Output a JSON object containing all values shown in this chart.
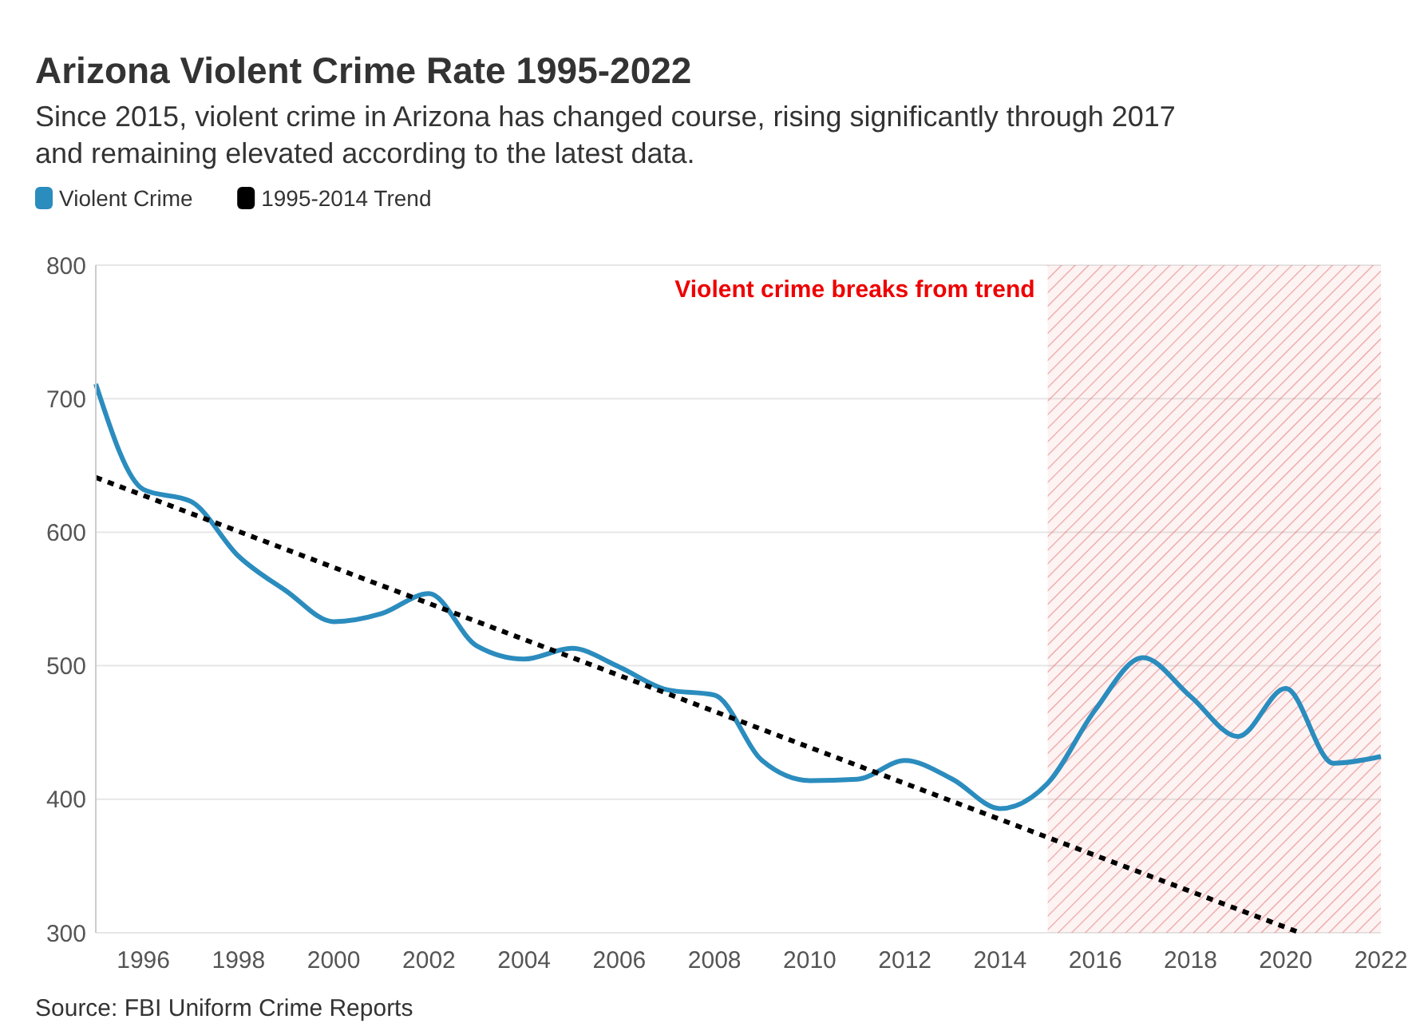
{
  "chart_data": {
    "type": "line",
    "title": "Arizona Violent Crime Rate 1995-2022",
    "subtitle": "Since 2015, violent crime in Arizona has changed course, rising significantly through 2017 and remaining elevated according to the latest data.",
    "annotations": [
      "Source: FBI Uniform Crime Reports"
    ],
    "x": [
      1995,
      1996,
      1997,
      1998,
      1999,
      2000,
      2001,
      2002,
      2003,
      2004,
      2005,
      2006,
      2007,
      2008,
      2009,
      2010,
      2011,
      2012,
      2013,
      2014,
      2015,
      2016,
      2017,
      2018,
      2019,
      2020,
      2021,
      2022
    ],
    "series": [
      {
        "name": "Violent Crime",
        "color": "#2b8cbe",
        "values": [
          711,
          632,
          623,
          582,
          556,
          533,
          539,
          554,
          515,
          505,
          513,
          499,
          482,
          478,
          429,
          414,
          415,
          429,
          415,
          393,
          412,
          467,
          506,
          477,
          447,
          483,
          427,
          432
        ]
      },
      {
        "name": "1995-2014 Trend",
        "color": "#000000",
        "type": "line",
        "line_style": "dotted",
        "x": [
          1995,
          2020.3
        ],
        "values": [
          641,
          300
        ]
      }
    ],
    "xlim": [
      1995,
      2022
    ],
    "xticks": [
      1996,
      1998,
      2000,
      2002,
      2004,
      2006,
      2008,
      2010,
      2012,
      2014,
      2016,
      2018,
      2020,
      2022
    ],
    "ylim": [
      300,
      800
    ],
    "yticks": [
      300,
      400,
      500,
      600,
      700,
      800
    ],
    "grid": "y",
    "legend": "top left",
    "bands": [
      {
        "axis": "x",
        "from": 2015,
        "to": 2022,
        "label": "Violent crime breaks from trend",
        "color": "#e06666"
      }
    ]
  }
}
